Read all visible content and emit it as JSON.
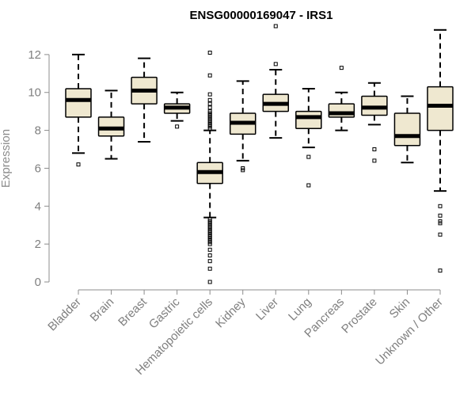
{
  "chart_data": {
    "type": "boxplot",
    "title": "ENSG00000169047 - IRS1",
    "xlabel": "",
    "ylabel": "Expression",
    "ylim": [
      0,
      13.5
    ],
    "yticks": [
      0,
      2,
      4,
      6,
      8,
      10,
      12
    ],
    "grid": false,
    "colors": {
      "box_fill": "#efe8d0",
      "box_stroke": "#000000",
      "axis": "#8c8c8c",
      "tick_text": "#7f7f7f"
    },
    "categories": [
      "Bladder",
      "Brain",
      "Breast",
      "Gastric",
      "Hematopoietic cells",
      "Kidney",
      "Liver",
      "Lung",
      "Pancreas",
      "Prostate",
      "Skin",
      "Unknown / Other"
    ],
    "boxes": [
      {
        "category": "Bladder",
        "whisker_low": 6.8,
        "q1": 8.7,
        "median": 9.6,
        "q3": 10.2,
        "whisker_high": 12.0,
        "outliers": [
          6.2
        ]
      },
      {
        "category": "Brain",
        "whisker_low": 6.5,
        "q1": 7.7,
        "median": 8.1,
        "q3": 8.7,
        "whisker_high": 10.1,
        "outliers": []
      },
      {
        "category": "Breast",
        "whisker_low": 7.4,
        "q1": 9.4,
        "median": 10.1,
        "q3": 10.8,
        "whisker_high": 11.8,
        "outliers": []
      },
      {
        "category": "Gastric",
        "whisker_low": 8.5,
        "q1": 8.9,
        "median": 9.2,
        "q3": 9.4,
        "whisker_high": 10.0,
        "outliers": [
          8.2
        ]
      },
      {
        "category": "Hematopoietic cells",
        "whisker_low": 3.4,
        "q1": 5.2,
        "median": 5.8,
        "q3": 6.3,
        "whisker_high": 8.0,
        "outliers": [
          12.1,
          10.9,
          9.9,
          9.6,
          9.4,
          9.2,
          9.0,
          8.9,
          8.8,
          8.7,
          8.6,
          8.5,
          8.4,
          8.3,
          8.2,
          8.1,
          3.3,
          3.2,
          3.1,
          3.0,
          2.9,
          2.8,
          2.7,
          2.6,
          2.5,
          2.4,
          2.3,
          2.2,
          2.1,
          2.0,
          1.7,
          1.4,
          1.1,
          0.7,
          0.0
        ]
      },
      {
        "category": "Kidney",
        "whisker_low": 6.4,
        "q1": 7.8,
        "median": 8.4,
        "q3": 8.9,
        "whisker_high": 10.6,
        "outliers": [
          6.0,
          5.9
        ]
      },
      {
        "category": "Liver",
        "whisker_low": 7.6,
        "q1": 9.0,
        "median": 9.4,
        "q3": 9.9,
        "whisker_high": 11.2,
        "outliers": [
          13.5,
          11.5
        ]
      },
      {
        "category": "Lung",
        "whisker_low": 7.1,
        "q1": 8.1,
        "median": 8.7,
        "q3": 9.0,
        "whisker_high": 10.2,
        "outliers": [
          6.6,
          5.1
        ]
      },
      {
        "category": "Pancreas",
        "whisker_low": 8.0,
        "q1": 8.7,
        "median": 8.9,
        "q3": 9.4,
        "whisker_high": 10.0,
        "outliers": [
          11.3
        ]
      },
      {
        "category": "Prostate",
        "whisker_low": 8.3,
        "q1": 8.8,
        "median": 9.2,
        "q3": 9.8,
        "whisker_high": 10.5,
        "outliers": [
          7.0,
          6.4
        ]
      },
      {
        "category": "Skin",
        "whisker_low": 6.3,
        "q1": 7.2,
        "median": 7.7,
        "q3": 8.9,
        "whisker_high": 9.8,
        "outliers": []
      },
      {
        "category": "Unknown / Other",
        "whisker_low": 4.8,
        "q1": 8.0,
        "median": 9.3,
        "q3": 10.3,
        "whisker_high": 13.3,
        "outliers": [
          4.0,
          3.5,
          3.2,
          3.1,
          2.5,
          0.6
        ]
      }
    ]
  }
}
